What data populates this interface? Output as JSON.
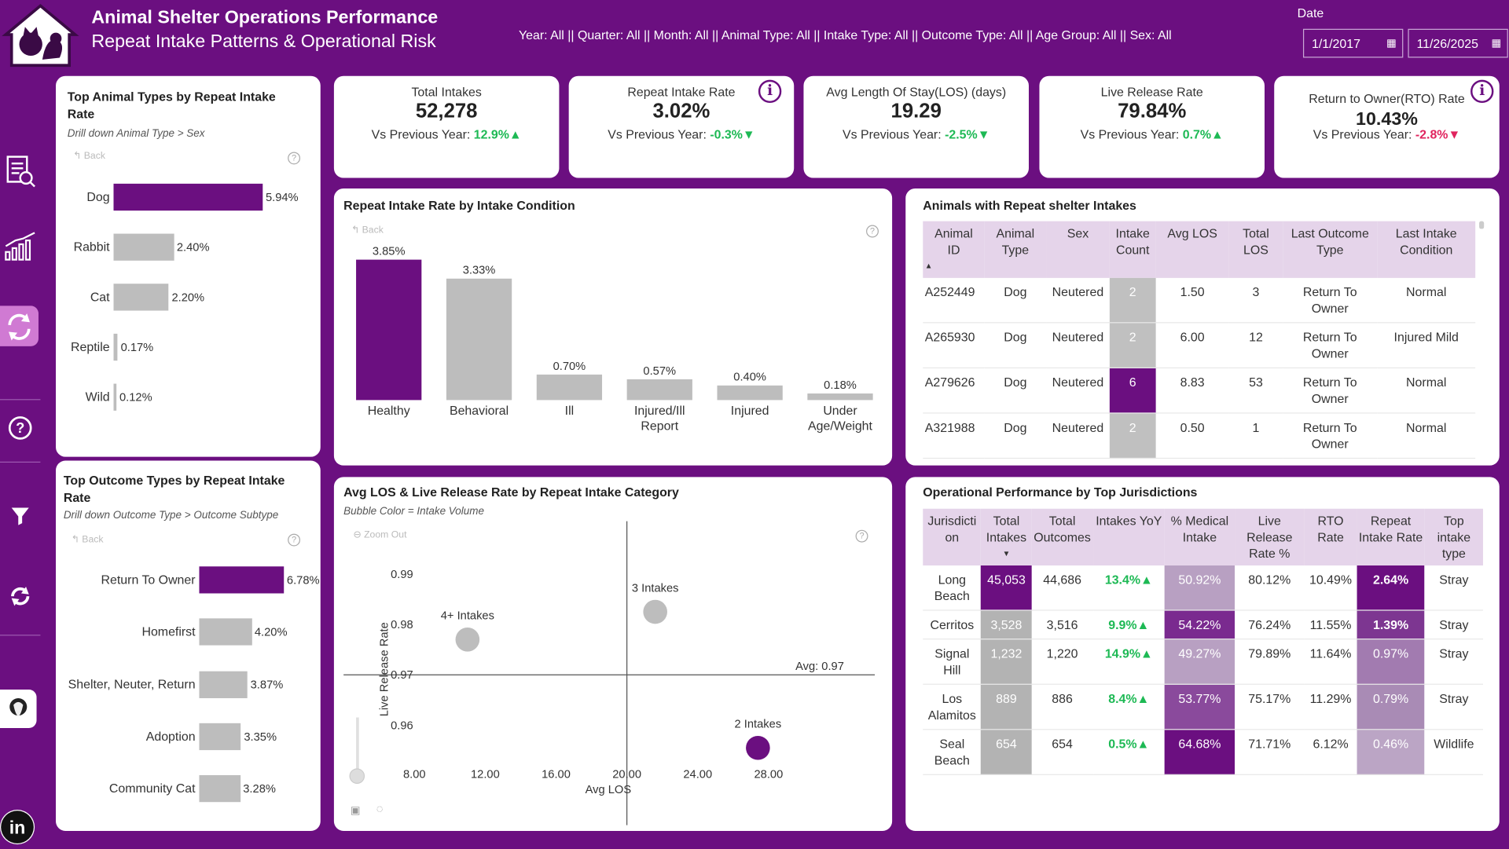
{
  "header": {
    "title": "Animal Shelter Operations Performance",
    "subtitle": "Repeat Intake Patterns & Operational Risk",
    "filters": "Year: All || Quarter: All || Month: All || Animal Type: All || Intake Type: All || Outcome Type: All || Age Group: All || Sex: All",
    "date_label": "Date",
    "date_from": "1/1/2017",
    "date_to": "11/26/2025"
  },
  "sidebar": [
    "report-icon",
    "growth-chart-icon",
    "refresh-cycle-icon",
    "help-icon",
    "filter-icon",
    "sync-icon",
    "profile-icon",
    "linkedin-icon"
  ],
  "kpis": [
    {
      "label": "Total Intakes",
      "value": "52,278",
      "cmp_label": "Vs Previous Year:",
      "cmp_value": "12.9%",
      "dir": "up"
    },
    {
      "label": "Repeat Intake Rate",
      "value": "3.02%",
      "cmp_label": "Vs Previous Year:",
      "cmp_value": "-0.3%",
      "dir": "down-good"
    },
    {
      "label": "Avg Length Of Stay(LOS) (days)",
      "value": "19.29",
      "cmp_label": "Vs Previous Year:",
      "cmp_value": "-2.5%",
      "dir": "down-good"
    },
    {
      "label": "Live Release Rate",
      "value": "79.84%",
      "cmp_label": "Vs Previous Year:",
      "cmp_value": "0.7%",
      "dir": "up"
    },
    {
      "label": "Return to Owner(RTO) Rate",
      "value": "10.43%",
      "cmp_label": "Vs Previous Year:",
      "cmp_value": "-2.8%",
      "dir": "down"
    }
  ],
  "animal_types": {
    "title": "Top Animal Types by Repeat Intake Rate",
    "drill": "Drill down Animal Type > Sex",
    "back": "Back",
    "items": [
      {
        "label": "Dog",
        "value": 5.94,
        "text": "5.94%"
      },
      {
        "label": "Rabbit",
        "value": 2.4,
        "text": "2.40%"
      },
      {
        "label": "Cat",
        "value": 2.2,
        "text": "2.20%"
      },
      {
        "label": "Reptile",
        "value": 0.17,
        "text": "0.17%"
      },
      {
        "label": "Wild",
        "value": 0.12,
        "text": "0.12%"
      }
    ]
  },
  "outcome_types": {
    "title": "Top Outcome Types by Repeat Intake Rate",
    "drill": "Drill down Outcome Type > Outcome Subtype",
    "back": "Back",
    "items": [
      {
        "label": "Return To Owner",
        "value": 6.78,
        "text": "6.78%"
      },
      {
        "label": "Homefirst",
        "value": 4.2,
        "text": "4.20%"
      },
      {
        "label": "Shelter, Neuter, Return",
        "value": 3.87,
        "text": "3.87%"
      },
      {
        "label": "Adoption",
        "value": 3.35,
        "text": "3.35%"
      },
      {
        "label": "Community Cat",
        "value": 3.28,
        "text": "3.28%"
      }
    ]
  },
  "chart_data": [
    {
      "type": "bar",
      "title": "Repeat Intake Rate by Intake Condition",
      "categories": [
        "Healthy",
        "Behavioral",
        "Ill",
        "Injured/Ill Report",
        "Injured",
        "Under Age/Weight"
      ],
      "values": [
        3.85,
        3.33,
        0.7,
        0.57,
        0.4,
        0.18
      ],
      "labels": [
        "3.85%",
        "3.33%",
        "0.70%",
        "0.57%",
        "0.40%",
        "0.18%"
      ],
      "highlight": "#6b0f80",
      "color": "#bdbdbd"
    },
    {
      "type": "scatter",
      "title": "Avg LOS & Live Release Rate by Repeat Intake Category",
      "subtitle": "Bubble Color = Intake Volume",
      "zoom_out": "Zoom Out",
      "xlabel": "Avg LOS",
      "ylabel": "Live Release Rate",
      "xlim": [
        4,
        34
      ],
      "ylim": [
        0.952,
        0.998
      ],
      "xticks": [
        "8.00",
        "12.00",
        "16.00",
        "20.00",
        "24.00",
        "28.00"
      ],
      "xtick_values": [
        8,
        12,
        16,
        20,
        24,
        28
      ],
      "yticks": [
        "0.99",
        "0.98",
        "0.97",
        "0.96"
      ],
      "ytick_values": [
        0.99,
        0.98,
        0.97,
        0.96
      ],
      "avg_label": "Avg: 0.97",
      "avg_y": 0.97,
      "avg_x": 20,
      "points": [
        {
          "name": "4+ Intakes",
          "x": 11,
          "y": 0.977,
          "color": "#bdbdbd"
        },
        {
          "name": "3 Intakes",
          "x": 21.6,
          "y": 0.9825,
          "color": "#bdbdbd"
        },
        {
          "name": "2 Intakes",
          "x": 27.4,
          "y": 0.9555,
          "color": "#6b0f80"
        }
      ]
    }
  ],
  "repeat_table": {
    "title": "Animals with Repeat shelter Intakes",
    "headers": [
      "Animal ID",
      "Animal Type",
      "Sex",
      "Intake Count",
      "Avg LOS",
      "Total LOS",
      "Last Outcome Type",
      "Last Intake Condition"
    ],
    "rows": [
      [
        "A252449",
        "Dog",
        "Neutered",
        "2",
        "1.50",
        "3",
        "Return To Owner",
        "Normal"
      ],
      [
        "A265930",
        "Dog",
        "Neutered",
        "2",
        "6.00",
        "12",
        "Return To Owner",
        "Injured Mild"
      ],
      [
        "A279626",
        "Dog",
        "Neutered",
        "6",
        "8.83",
        "53",
        "Return To Owner",
        "Normal"
      ],
      [
        "A321988",
        "Dog",
        "Neutered",
        "2",
        "0.50",
        "1",
        "Return To Owner",
        "Normal"
      ]
    ]
  },
  "jur_table": {
    "title": "Operational Performance by Top Jurisdictions",
    "headers": [
      "Jurisdicti on",
      "Total Intakes",
      "Total Outcomes",
      "Intakes YoY",
      "% Medical Intake",
      "Live Release Rate %",
      "RTO Rate",
      "Repeat Intake Rate",
      "Top intake type"
    ],
    "rows": [
      [
        "Long Beach",
        "45,053",
        "44,686",
        "13.4%",
        "50.92%",
        "80.12%",
        "10.49%",
        "2.64%",
        "Stray"
      ],
      [
        "Cerritos",
        "3,528",
        "3,516",
        "9.9%",
        "54.22%",
        "76.24%",
        "11.55%",
        "1.39%",
        "Stray"
      ],
      [
        "Signal Hill",
        "1,232",
        "1,220",
        "14.9%",
        "49.27%",
        "79.89%",
        "11.64%",
        "0.97%",
        "Stray"
      ],
      [
        "Los Alamitos",
        "889",
        "886",
        "8.4%",
        "53.77%",
        "75.17%",
        "11.29%",
        "0.79%",
        "Stray"
      ],
      [
        "Seal Beach",
        "654",
        "654",
        "0.5%",
        "64.68%",
        "71.71%",
        "6.12%",
        "0.46%",
        "Wildlife"
      ]
    ]
  }
}
